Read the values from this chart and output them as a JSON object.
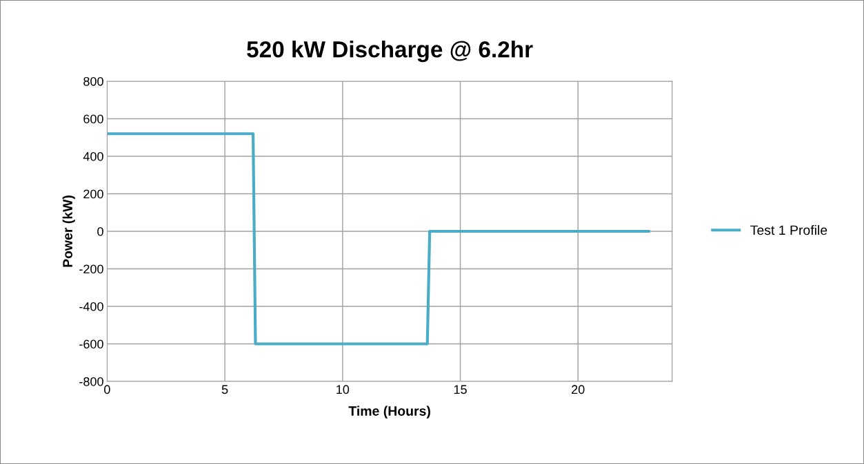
{
  "chart_data": {
    "type": "line",
    "title": "520 kW Discharge @ 6.2hr",
    "xlabel": "Time (Hours)",
    "ylabel": "Power (kW)",
    "series": [
      {
        "name": "Test 1 Profile",
        "color": "#4bacc6",
        "x": [
          0,
          6.2,
          6.3,
          13.6,
          13.7,
          23
        ],
        "values": [
          520,
          520,
          -600,
          -600,
          0,
          0
        ]
      }
    ],
    "xlim": [
      0,
      24
    ],
    "xticks": [
      0,
      5,
      10,
      15,
      20,
      {
        "value": 24,
        "label": null
      }
    ],
    "ylim": [
      -800,
      800
    ],
    "yticks": [
      -800,
      -600,
      -400,
      -200,
      0,
      200,
      400,
      600,
      800
    ],
    "grid": true,
    "legend": "right",
    "marker": "none",
    "line_style": "solid"
  }
}
